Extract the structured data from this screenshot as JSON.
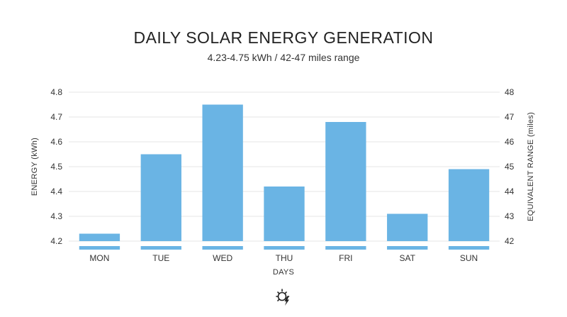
{
  "chart_data": {
    "type": "bar",
    "title": "DAILY SOLAR ENERGY GENERATION",
    "subtitle": "4.23-4.75 kWh / 42-47 miles range",
    "xlabel": "DAYS",
    "ylabel": "ENERGY (kWh)",
    "y2label": "EQUIVALENT RANGE (miles)",
    "categories": [
      "MON",
      "TUE",
      "WED",
      "THU",
      "FRI",
      "SAT",
      "SUN"
    ],
    "values": [
      4.23,
      4.55,
      4.75,
      4.42,
      4.68,
      4.31,
      4.49
    ],
    "ylim": [
      4.2,
      4.8
    ],
    "yticks": [
      "4.2",
      "4.3",
      "4.4",
      "4.5",
      "4.6",
      "4.7",
      "4.8"
    ],
    "y2lim": [
      42,
      48
    ],
    "y2ticks": [
      "42",
      "43",
      "44",
      "45",
      "46",
      "47",
      "48"
    ],
    "grid": true,
    "bar_color": "#6ab4e4",
    "grid_color": "#e6e6e6"
  },
  "footer": {
    "icon": "sun-lightning-icon"
  }
}
